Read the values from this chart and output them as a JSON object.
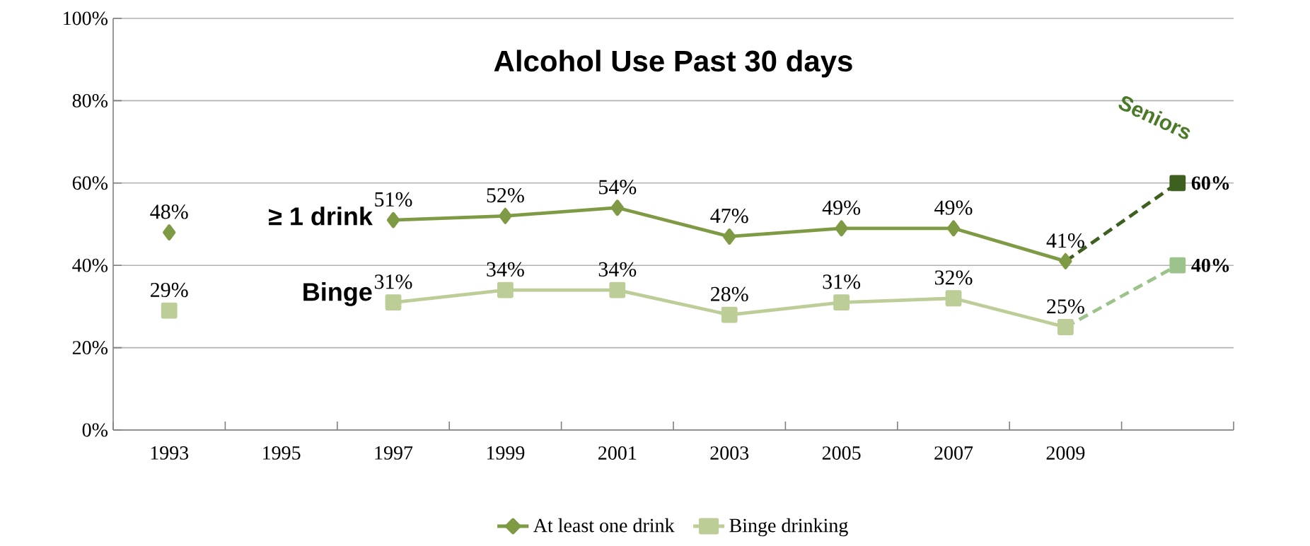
{
  "chart_data": {
    "type": "line",
    "title": "Alcohol Use Past 30 days",
    "categories": [
      "1993",
      "1995",
      "1997",
      "1999",
      "2001",
      "2003",
      "2005",
      "2007",
      "2009",
      null
    ],
    "series": [
      {
        "name": null,
        "color": "#3d5f1f",
        "line_style": "dashed",
        "marker": "square",
        "values": [
          null,
          null,
          null,
          null,
          null,
          null,
          null,
          null,
          41,
          60
        ],
        "value_labels": [
          null,
          null,
          null,
          null,
          null,
          null,
          null,
          null,
          null,
          "60%"
        ]
      },
      {
        "name": null,
        "color": "#9dc38c",
        "line_style": "dashed",
        "marker": "square",
        "values": [
          null,
          null,
          null,
          null,
          null,
          null,
          null,
          null,
          25,
          40
        ],
        "value_labels": [
          null,
          null,
          null,
          null,
          null,
          null,
          null,
          null,
          null,
          "40%"
        ]
      },
      {
        "name": "At least one drink",
        "color": "#7f9a44",
        "line_style": "solid",
        "marker": "diamond",
        "values": [
          48,
          null,
          51,
          52,
          54,
          47,
          49,
          49,
          41,
          null
        ],
        "value_labels": [
          "48%",
          null,
          "51%",
          "52%",
          "54%",
          "47%",
          "49%",
          "49%",
          "41%",
          null
        ]
      },
      {
        "name": "Binge drinking",
        "color": "#bccd97",
        "line_style": "solid",
        "marker": "square",
        "values": [
          29,
          null,
          31,
          34,
          34,
          28,
          31,
          32,
          25,
          null
        ],
        "value_labels": [
          "29%",
          null,
          "31%",
          "34%",
          "34%",
          "28%",
          "31%",
          "32%",
          "25%",
          null
        ]
      }
    ],
    "ylim": [
      0,
      100
    ],
    "yticks": [
      {
        "value": 0,
        "label": "0%"
      },
      {
        "value": 20,
        "label": "20%"
      },
      {
        "value": 40,
        "label": "40%"
      },
      {
        "value": 60,
        "label": "60%"
      },
      {
        "value": 80,
        "label": "80%"
      },
      {
        "value": 100,
        "label": "100%"
      }
    ],
    "grid": "y",
    "legend": "bottom",
    "annotations": [
      "≥ 1 drink",
      "Binge",
      "Seniors"
    ]
  }
}
